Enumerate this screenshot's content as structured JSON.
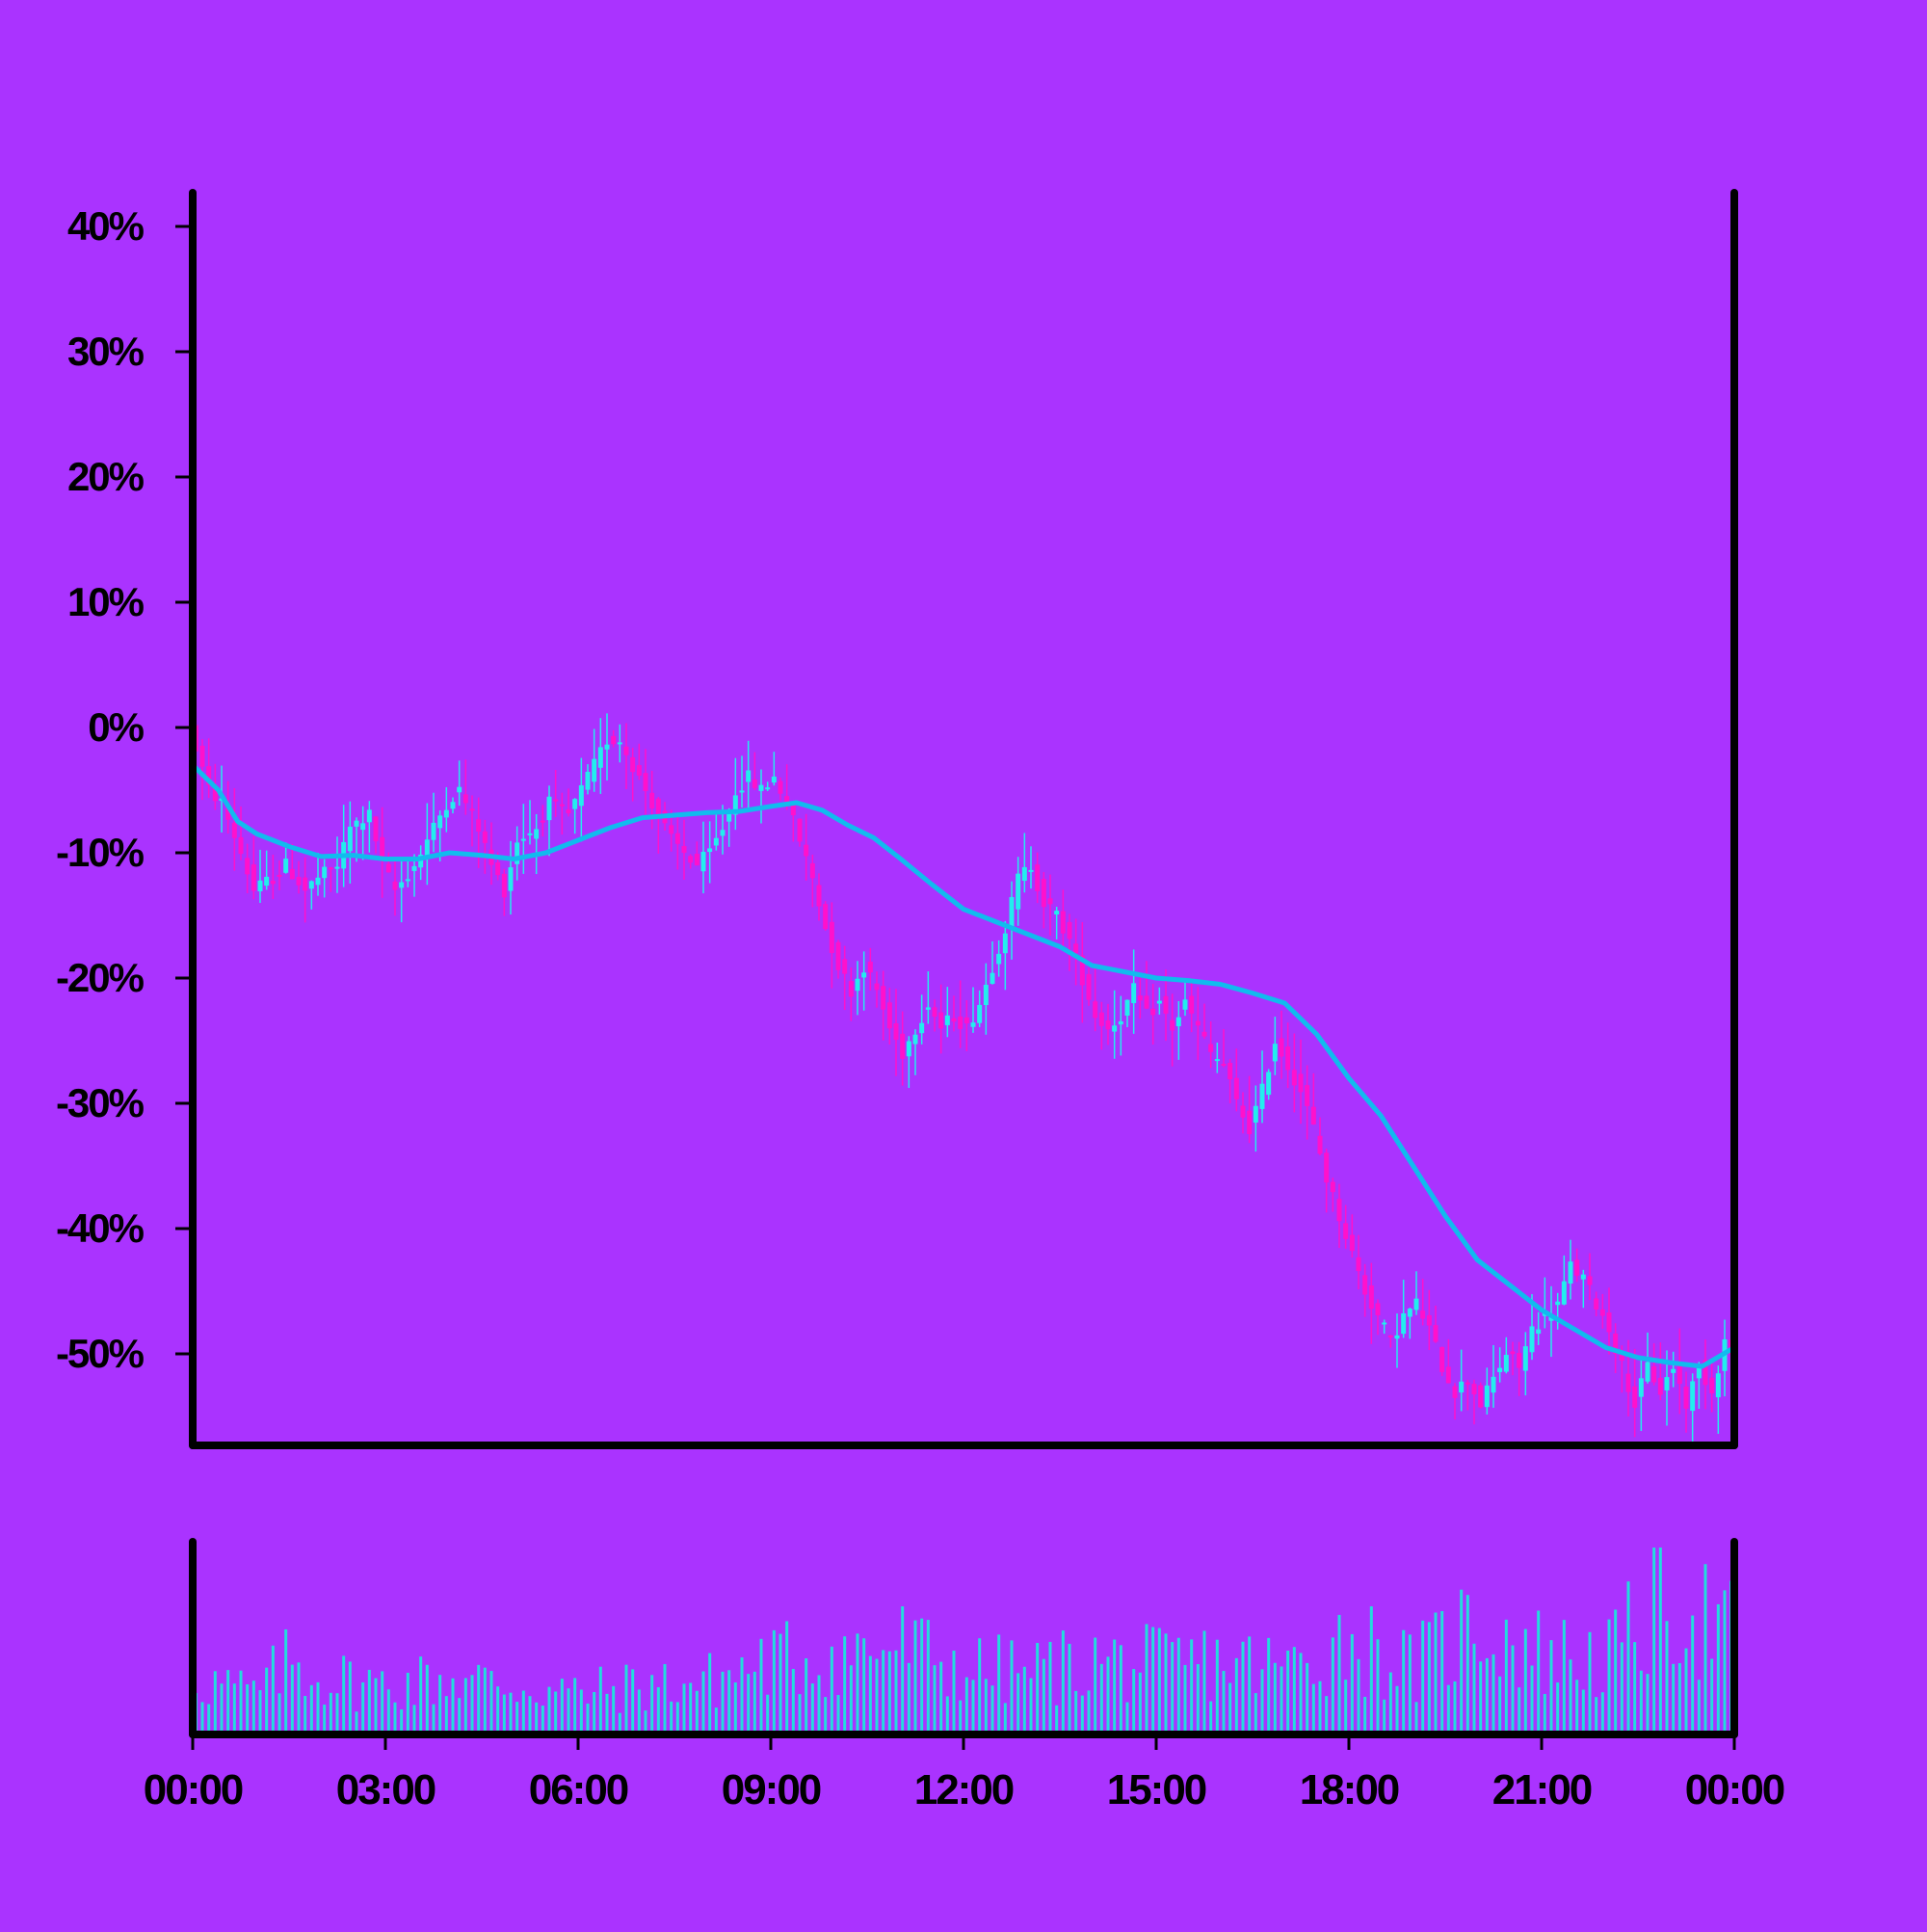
{
  "colors": {
    "background": "#aa33ff",
    "up": "#22eeee",
    "down": "#ff11cc",
    "ma_line": "#11bbee",
    "volume": "#22dddd",
    "axis": "#000000"
  },
  "chart_data": {
    "type": "candlestick",
    "title": "",
    "xlabel": "",
    "ylabel": "",
    "ylim": [
      -57,
      43
    ],
    "y_ticks": [
      40,
      30,
      20,
      10,
      0,
      -10,
      -20,
      -30,
      -40,
      -50
    ],
    "y_tick_labels": [
      "40%",
      "30%",
      "20%",
      "10%",
      "0%",
      "-10%",
      "-20%",
      "-30%",
      "-40%",
      "-50%"
    ],
    "x_ticks": [
      "00:00",
      "03:00",
      "06:00",
      "09:00",
      "12:00",
      "15:00",
      "18:00",
      "21:00",
      "00:00"
    ],
    "xlim_hours": [
      0,
      24
    ],
    "grid": false,
    "legend": "none",
    "close_path": [
      [
        0.0,
        0
      ],
      [
        0.3,
        -5
      ],
      [
        0.5,
        -6
      ],
      [
        0.8,
        -10
      ],
      [
        1.0,
        -13
      ],
      [
        1.3,
        -12
      ],
      [
        1.5,
        -11
      ],
      [
        1.8,
        -13
      ],
      [
        2.0,
        -12
      ],
      [
        2.3,
        -11
      ],
      [
        2.5,
        -8
      ],
      [
        2.8,
        -7
      ],
      [
        3.0,
        -11
      ],
      [
        3.2,
        -13
      ],
      [
        3.5,
        -11
      ],
      [
        3.8,
        -8
      ],
      [
        4.0,
        -6
      ],
      [
        4.2,
        -5
      ],
      [
        4.5,
        -8
      ],
      [
        4.7,
        -11
      ],
      [
        4.9,
        -13
      ],
      [
        5.1,
        -9
      ],
      [
        5.4,
        -8
      ],
      [
        5.6,
        -6
      ],
      [
        5.9,
        -7
      ],
      [
        6.1,
        -5
      ],
      [
        6.3,
        -3
      ],
      [
        6.5,
        -1
      ],
      [
        6.7,
        -1
      ],
      [
        6.9,
        -3
      ],
      [
        7.1,
        -5
      ],
      [
        7.3,
        -7
      ],
      [
        7.5,
        -9
      ],
      [
        7.7,
        -10
      ],
      [
        7.9,
        -11
      ],
      [
        8.1,
        -10
      ],
      [
        8.3,
        -8
      ],
      [
        8.5,
        -5
      ],
      [
        8.7,
        -4
      ],
      [
        8.9,
        -5
      ],
      [
        9.1,
        -4
      ],
      [
        9.3,
        -6
      ],
      [
        9.5,
        -9
      ],
      [
        9.7,
        -12
      ],
      [
        9.9,
        -16
      ],
      [
        10.1,
        -19
      ],
      [
        10.3,
        -21
      ],
      [
        10.5,
        -19
      ],
      [
        10.7,
        -21
      ],
      [
        10.9,
        -24
      ],
      [
        11.1,
        -26
      ],
      [
        11.3,
        -24
      ],
      [
        11.5,
        -22
      ],
      [
        11.7,
        -24
      ],
      [
        11.9,
        -23
      ],
      [
        12.1,
        -24
      ],
      [
        12.3,
        -22
      ],
      [
        12.5,
        -19
      ],
      [
        12.7,
        -16
      ],
      [
        12.9,
        -12
      ],
      [
        13.1,
        -11
      ],
      [
        13.3,
        -14
      ],
      [
        13.5,
        -15
      ],
      [
        13.7,
        -17
      ],
      [
        13.9,
        -20
      ],
      [
        14.1,
        -23
      ],
      [
        14.3,
        -24
      ],
      [
        14.5,
        -23
      ],
      [
        14.7,
        -21
      ],
      [
        14.9,
        -23
      ],
      [
        15.1,
        -22
      ],
      [
        15.3,
        -24
      ],
      [
        15.5,
        -22
      ],
      [
        15.7,
        -24
      ],
      [
        15.9,
        -26
      ],
      [
        16.1,
        -27
      ],
      [
        16.3,
        -30
      ],
      [
        16.5,
        -32
      ],
      [
        16.7,
        -29
      ],
      [
        16.9,
        -25
      ],
      [
        17.1,
        -27
      ],
      [
        17.3,
        -29
      ],
      [
        17.5,
        -32
      ],
      [
        17.7,
        -36
      ],
      [
        17.9,
        -39
      ],
      [
        18.1,
        -42
      ],
      [
        18.3,
        -45
      ],
      [
        18.5,
        -47
      ],
      [
        18.7,
        -49
      ],
      [
        18.9,
        -47
      ],
      [
        19.1,
        -46
      ],
      [
        19.3,
        -48
      ],
      [
        19.5,
        -51
      ],
      [
        19.7,
        -53
      ],
      [
        19.9,
        -52
      ],
      [
        20.1,
        -54
      ],
      [
        20.3,
        -52
      ],
      [
        20.5,
        -50
      ],
      [
        20.7,
        -51
      ],
      [
        20.9,
        -48
      ],
      [
        21.1,
        -47
      ],
      [
        21.3,
        -46
      ],
      [
        21.5,
        -43
      ],
      [
        21.7,
        -44
      ],
      [
        21.9,
        -46
      ],
      [
        22.1,
        -48
      ],
      [
        22.3,
        -51
      ],
      [
        22.5,
        -54
      ],
      [
        22.7,
        -51
      ],
      [
        22.9,
        -53
      ],
      [
        23.1,
        -51
      ],
      [
        23.3,
        -54
      ],
      [
        23.5,
        -51
      ],
      [
        23.7,
        -53
      ],
      [
        23.9,
        -49
      ],
      [
        24.0,
        -50
      ]
    ],
    "moving_average": [
      [
        0.0,
        -3
      ],
      [
        0.4,
        -5
      ],
      [
        0.7,
        -7.5
      ],
      [
        1.0,
        -8.5
      ],
      [
        1.5,
        -9.5
      ],
      [
        2.0,
        -10.3
      ],
      [
        2.5,
        -10.2
      ],
      [
        3.0,
        -10.5
      ],
      [
        3.5,
        -10.5
      ],
      [
        4.0,
        -10
      ],
      [
        4.5,
        -10.2
      ],
      [
        5.0,
        -10.5
      ],
      [
        5.5,
        -10
      ],
      [
        6.0,
        -9
      ],
      [
        6.5,
        -8
      ],
      [
        7.0,
        -7.2
      ],
      [
        7.5,
        -7
      ],
      [
        8.0,
        -6.8
      ],
      [
        8.5,
        -6.7
      ],
      [
        9.0,
        -6.3
      ],
      [
        9.4,
        -6
      ],
      [
        9.8,
        -6.6
      ],
      [
        10.2,
        -7.8
      ],
      [
        10.6,
        -8.8
      ],
      [
        11.0,
        -10.4
      ],
      [
        11.5,
        -12.5
      ],
      [
        12.0,
        -14.5
      ],
      [
        12.5,
        -15.5
      ],
      [
        13.0,
        -16.5
      ],
      [
        13.5,
        -17.5
      ],
      [
        14.0,
        -19
      ],
      [
        14.5,
        -19.5
      ],
      [
        15.0,
        -20
      ],
      [
        15.5,
        -20.2
      ],
      [
        16.0,
        -20.5
      ],
      [
        16.5,
        -21.2
      ],
      [
        17.0,
        -22
      ],
      [
        17.5,
        -24.5
      ],
      [
        18.0,
        -28
      ],
      [
        18.5,
        -31
      ],
      [
        19.0,
        -35
      ],
      [
        19.5,
        -39
      ],
      [
        20.0,
        -42.5
      ],
      [
        20.5,
        -44.5
      ],
      [
        21.0,
        -46.5
      ],
      [
        21.5,
        -48
      ],
      [
        22.0,
        -49.5
      ],
      [
        22.5,
        -50.3
      ],
      [
        23.0,
        -50.7
      ],
      [
        23.5,
        -51
      ],
      [
        24.0,
        -49.5
      ]
    ],
    "volume_profile": [
      [
        0.0,
        0.35
      ],
      [
        1.0,
        0.25
      ],
      [
        1.5,
        0.45
      ],
      [
        2.0,
        0.35
      ],
      [
        3.0,
        0.3
      ],
      [
        4.0,
        0.35
      ],
      [
        5.0,
        0.3
      ],
      [
        6.0,
        0.25
      ],
      [
        7.0,
        0.3
      ],
      [
        8.0,
        0.32
      ],
      [
        9.0,
        0.45
      ],
      [
        10.0,
        0.48
      ],
      [
        11.0,
        0.55
      ],
      [
        12.0,
        0.4
      ],
      [
        13.0,
        0.38
      ],
      [
        14.0,
        0.45
      ],
      [
        15.0,
        0.42
      ],
      [
        16.0,
        0.45
      ],
      [
        17.0,
        0.4
      ],
      [
        18.0,
        0.6
      ],
      [
        19.0,
        0.4
      ],
      [
        20.0,
        0.7
      ],
      [
        21.0,
        0.5
      ],
      [
        22.0,
        0.45
      ],
      [
        23.0,
        0.85
      ],
      [
        24.0,
        0.6
      ]
    ]
  }
}
